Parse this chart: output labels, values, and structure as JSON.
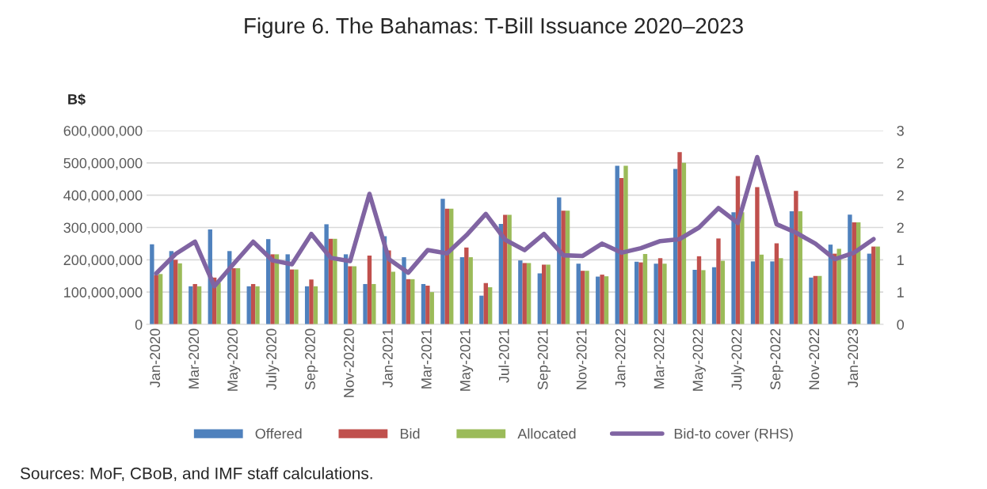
{
  "chart_data": {
    "type": "bar",
    "title": "Figure 6. The Bahamas: T-Bill Issuance 2020–2023",
    "ylabel": "B$",
    "categories": [
      "Jan-2020",
      null,
      "Mar-2020",
      null,
      "May-2020",
      null,
      "July-2020",
      null,
      "Sep-2020",
      null,
      "Nov-20220",
      null,
      "Jan-2021",
      null,
      "Mar-2021",
      null,
      "May-2021",
      null,
      "Jul-2021",
      null,
      "Sep-2021",
      null,
      "Nov-2021",
      null,
      "Jan-2022",
      null,
      "Mar-2022",
      null,
      "May-2022",
      null,
      "July-2022",
      null,
      "Sep-2022",
      null,
      "Nov-2022",
      null,
      "Jan-2023",
      null
    ],
    "series": [
      {
        "name": "Offered",
        "color": "#4f81bd",
        "values": [
          248000000,
          227000000,
          118000000,
          294000000,
          227000000,
          118000000,
          264000000,
          217000000,
          118000000,
          310000000,
          217000000,
          125000000,
          273000000,
          208000000,
          125000000,
          389000000,
          208000000,
          89000000,
          311000000,
          198000000,
          158000000,
          393000000,
          188000000,
          148000000,
          491000000,
          194000000,
          188000000,
          481000000,
          169000000,
          177000000,
          347000000,
          195000000,
          195000000,
          350000000,
          145000000,
          247000000,
          340000000,
          219000000
        ]
      },
      {
        "name": "Bid",
        "color": "#c0504d",
        "values": [
          153000000,
          200000000,
          125000000,
          145000000,
          174000000,
          125000000,
          217000000,
          170000000,
          139000000,
          265000000,
          180000000,
          213000000,
          229000000,
          140000000,
          120000000,
          358000000,
          238000000,
          128000000,
          339000000,
          190000000,
          185000000,
          352000000,
          166000000,
          154000000,
          453000000,
          192000000,
          205000000,
          533000000,
          211000000,
          266000000,
          459000000,
          425000000,
          251000000,
          413000000,
          150000000,
          219000000,
          316000000,
          241000000
        ]
      },
      {
        "name": "Allocated",
        "color": "#9bbb59",
        "values": [
          156000000,
          189000000,
          118000000,
          129000000,
          174000000,
          118000000,
          217000000,
          170000000,
          118000000,
          265000000,
          180000000,
          125000000,
          163000000,
          140000000,
          100000000,
          358000000,
          208000000,
          115000000,
          339000000,
          190000000,
          185000000,
          352000000,
          166000000,
          149000000,
          491000000,
          218000000,
          188000000,
          500000000,
          168000000,
          197000000,
          347000000,
          216000000,
          205000000,
          350000000,
          150000000,
          234000000,
          316000000,
          241000000
        ]
      },
      {
        "name": "Bid-to cover (RHS)",
        "type": "line",
        "axis": "y2",
        "color": "#8064a2",
        "values": [
          0.79,
          1.09,
          1.28,
          0.59,
          0.94,
          1.28,
          0.99,
          0.93,
          1.4,
          1.03,
          0.98,
          2.02,
          1.01,
          0.8,
          1.15,
          1.1,
          1.38,
          1.71,
          1.31,
          1.15,
          1.4,
          1.07,
          1.06,
          1.25,
          1.11,
          1.18,
          1.29,
          1.32,
          1.5,
          1.8,
          1.57,
          2.59,
          1.55,
          1.42,
          1.25,
          1.01,
          1.11,
          1.32
        ]
      }
    ],
    "ylim": [
      0,
      600000000
    ],
    "yticks": [
      0,
      {
        "value": 100000000,
        "label": "100,000,000"
      },
      {
        "value": 200000000,
        "label": "200,000,000"
      },
      {
        "value": 300000000,
        "label": "300,000,000"
      },
      {
        "value": 400000000,
        "label": "400,000,000"
      },
      {
        "value": 500000000,
        "label": "500,000,000"
      },
      {
        "value": 600000000,
        "label": "600,000,000"
      }
    ],
    "y2lim": [
      0,
      3
    ],
    "y2ticks": [
      0,
      {
        "value": 0.5,
        "label": "1"
      },
      1,
      {
        "value": 1.5,
        "label": "2"
      },
      2,
      {
        "value": 2.5,
        "label": "2"
      },
      3
    ],
    "grid": "y",
    "legend": "bottom",
    "annotations": [
      "Sources: MoF, CBoB, and IMF staff calculations."
    ]
  }
}
